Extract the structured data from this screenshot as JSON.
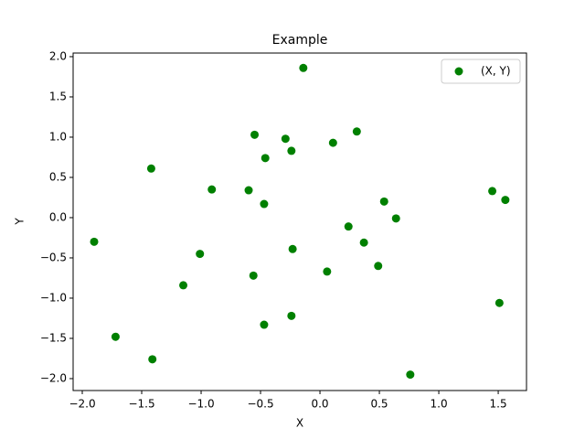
{
  "chart_data": {
    "type": "scatter",
    "title": "Example",
    "x_label": "X",
    "y_label": "Y",
    "series": [
      {
        "name": "(X, Y)",
        "color": "#008000",
        "x": [
          -0.14,
          -0.55,
          -0.29,
          -0.46,
          -0.24,
          0.11,
          0.31,
          -1.42,
          -0.91,
          -0.6,
          -0.47,
          0.54,
          0.64,
          0.24,
          0.37,
          1.45,
          1.56,
          -1.9,
          -1.01,
          -0.23,
          -0.56,
          0.06,
          0.49,
          -1.15,
          1.51,
          -0.24,
          -0.47,
          -1.72,
          -1.41,
          0.76
        ],
        "values": [
          1.86,
          1.03,
          0.98,
          0.74,
          0.83,
          0.93,
          1.07,
          0.61,
          0.35,
          0.34,
          0.17,
          0.2,
          -0.01,
          -0.11,
          -0.31,
          0.33,
          0.22,
          -0.3,
          -0.45,
          -0.39,
          -0.72,
          -0.67,
          -0.6,
          -0.84,
          -1.06,
          -1.22,
          -1.33,
          -1.48,
          -1.76,
          -1.95
        ]
      }
    ],
    "xlim": [
      -2.077,
      1.738
    ],
    "ylim": [
      -2.148,
      2.045
    ],
    "xticks": [
      {
        "value": -2,
        "label": "−2.0"
      },
      {
        "value": -1.5,
        "label": "−1.5"
      },
      {
        "value": -1,
        "label": "−1.0"
      },
      {
        "value": -0.5,
        "label": "−0.5"
      },
      {
        "value": 0,
        "label": "0.0"
      },
      {
        "value": 0.5,
        "label": "0.5"
      },
      {
        "value": 1,
        "label": "1.0"
      },
      {
        "value": 1.5,
        "label": "1.5"
      }
    ],
    "yticks": [
      {
        "value": -2,
        "label": "−2.0"
      },
      {
        "value": -1.5,
        "label": "−1.5"
      },
      {
        "value": -1,
        "label": "−1.0"
      },
      {
        "value": -0.5,
        "label": "−0.5"
      },
      {
        "value": 0,
        "label": "0.0"
      },
      {
        "value": 0.5,
        "label": "0.5"
      },
      {
        "value": 1,
        "label": "1.0"
      },
      {
        "value": 1.5,
        "label": "1.5"
      },
      {
        "value": 2,
        "label": "2.0"
      }
    ],
    "legend": "upper right",
    "grid": false
  }
}
